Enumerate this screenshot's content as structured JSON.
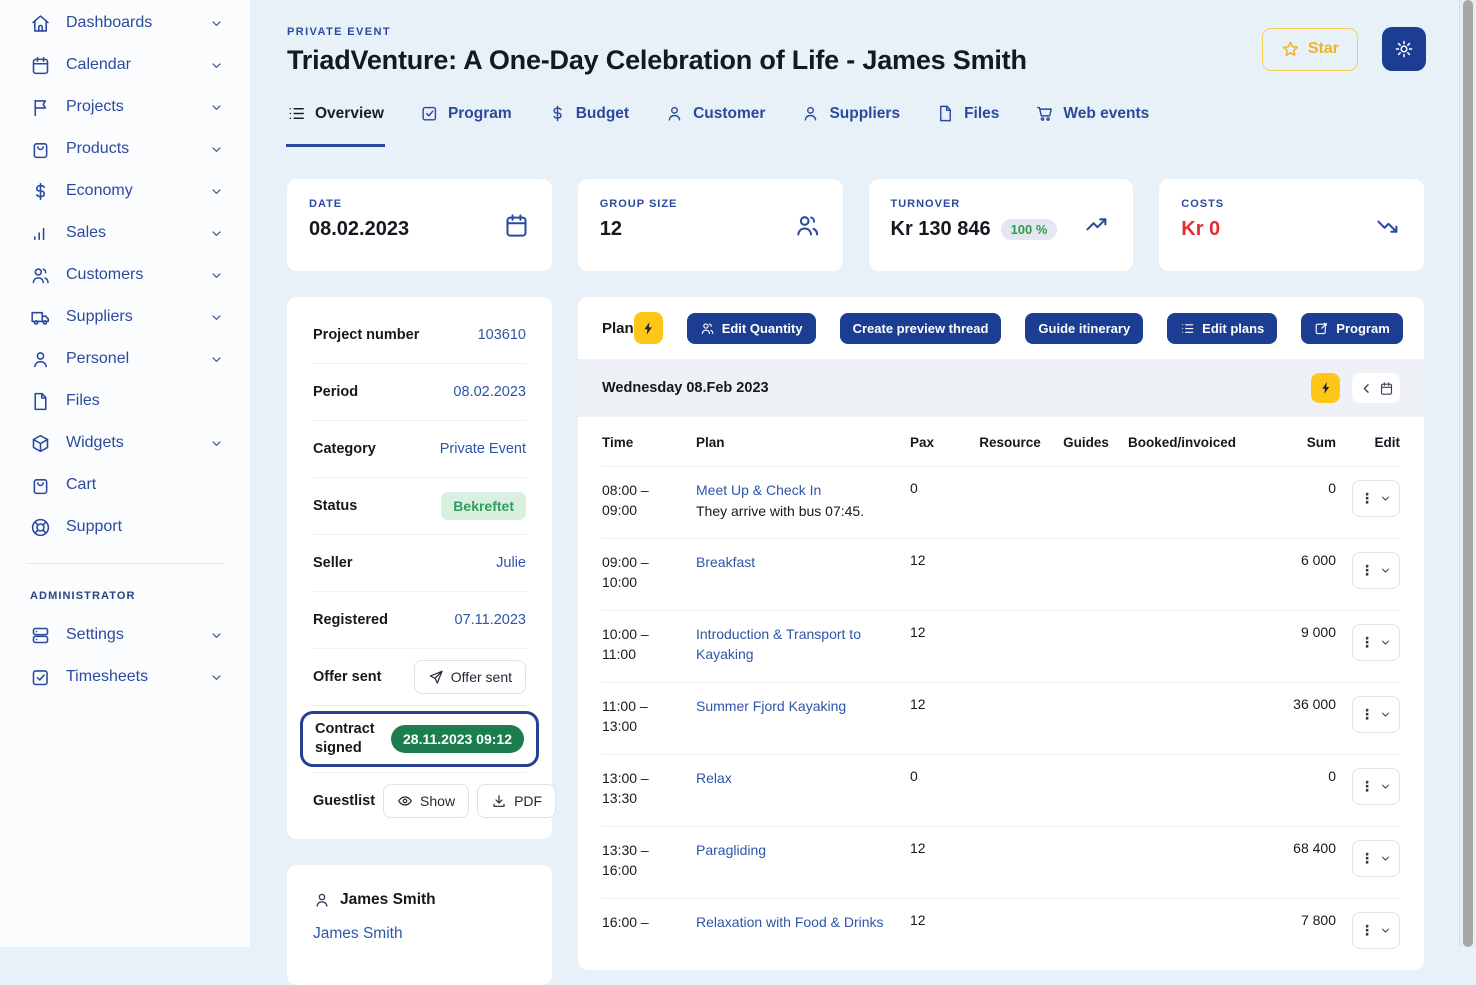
{
  "colors": {
    "navy_button": "#1b3e93",
    "link_blue": "#2d55a8",
    "sidebar_text": "#2b4a9d",
    "page_bg": "#e9f1f8",
    "yellow": "#ffc61a",
    "star_gold": "#f0b325",
    "red": "#e03131",
    "green_badge_bg": "#d9f0e1",
    "green_badge_text": "#2f9e5f",
    "green_solid": "#1e7d4e"
  },
  "sidebar": {
    "items": [
      {
        "label": "Dashboards",
        "icon": "home",
        "chevron": true
      },
      {
        "label": "Calendar",
        "icon": "calendar",
        "chevron": true
      },
      {
        "label": "Projects",
        "icon": "flag",
        "chevron": true
      },
      {
        "label": "Products",
        "icon": "bag",
        "chevron": true
      },
      {
        "label": "Economy",
        "icon": "dollar",
        "chevron": true
      },
      {
        "label": "Sales",
        "icon": "bar-chart",
        "chevron": true
      },
      {
        "label": "Customers",
        "icon": "users",
        "chevron": true
      },
      {
        "label": "Suppliers",
        "icon": "truck",
        "chevron": true
      },
      {
        "label": "Personel",
        "icon": "user",
        "chevron": true
      },
      {
        "label": "Files",
        "icon": "file",
        "chevron": false
      },
      {
        "label": "Widgets",
        "icon": "box",
        "chevron": true
      },
      {
        "label": "Cart",
        "icon": "bag",
        "chevron": false
      },
      {
        "label": "Support",
        "icon": "life-buoy",
        "chevron": false
      }
    ],
    "section_label": "ADMINISTRATOR",
    "admin_items": [
      {
        "label": "Settings",
        "icon": "server",
        "chevron": true
      },
      {
        "label": "Timesheets",
        "icon": "check-square",
        "chevron": true
      }
    ]
  },
  "header": {
    "kicker": "PRIVATE EVENT",
    "title": "TriadVenture: A One-Day Celebration of Life - James Smith",
    "star_button": "Star"
  },
  "tabs": [
    {
      "label": "Overview",
      "icon": "list",
      "active": true
    },
    {
      "label": "Program",
      "icon": "check-square",
      "active": false
    },
    {
      "label": "Budget",
      "icon": "dollar",
      "active": false
    },
    {
      "label": "Customer",
      "icon": "user",
      "active": false
    },
    {
      "label": "Suppliers",
      "icon": "user",
      "active": false
    },
    {
      "label": "Files",
      "icon": "file",
      "active": false
    },
    {
      "label": "Web events",
      "icon": "cart",
      "active": false
    }
  ],
  "stats": [
    {
      "label": "DATE",
      "value": "08.02.2023",
      "icon": "calendar"
    },
    {
      "label": "GROUP SIZE",
      "value": "12",
      "icon": "users"
    },
    {
      "label": "TURNOVER",
      "value": "Kr 130 846",
      "badge": "100 %",
      "icon": "trend-up"
    },
    {
      "label": "COSTS",
      "value": "Kr 0",
      "icon": "trend-down",
      "accent": "red"
    }
  ],
  "details": {
    "rows": [
      {
        "label": "Project number",
        "value": "103610",
        "type": "text"
      },
      {
        "label": "Period",
        "value": "08.02.2023",
        "type": "text"
      },
      {
        "label": "Category",
        "value": "Private Event",
        "type": "text"
      },
      {
        "label": "Status",
        "value": "Bekreftet",
        "type": "badge-green"
      },
      {
        "label": "Seller",
        "value": "Julie",
        "type": "text"
      },
      {
        "label": "Registered",
        "value": "07.11.2023",
        "type": "text"
      },
      {
        "label": "Offer sent",
        "value": "Offer sent",
        "type": "button-send"
      },
      {
        "label": "Contract signed",
        "value": "28.11.2023 09:12",
        "type": "badge-solid-green",
        "highlight": true
      },
      {
        "label": "Guestlist",
        "type": "buttons",
        "buttons": [
          {
            "label": "Show",
            "icon": "eye"
          },
          {
            "label": "PDF",
            "icon": "download"
          }
        ]
      }
    ]
  },
  "customer_card": {
    "name": "James Smith",
    "link": "James Smith"
  },
  "plan": {
    "title": "Plan",
    "action_buttons": [
      {
        "label": "Edit Quantity",
        "icon": "users"
      },
      {
        "label": "Create preview thread",
        "icon": ""
      },
      {
        "label": "Guide itinerary",
        "icon": ""
      },
      {
        "label": "Edit plans",
        "icon": "list"
      },
      {
        "label": "Program",
        "icon": "edit"
      }
    ],
    "day_header": "Wednesday 08.Feb 2023",
    "columns": [
      "Time",
      "Plan",
      "Pax",
      "Resource",
      "Guides",
      "Booked/invoiced",
      "Sum",
      "Edit"
    ],
    "rows": [
      {
        "time_start": "08:00 –",
        "time_end": "09:00",
        "title": "Meet Up & Check In",
        "note": "They arrive with bus 07:45.",
        "pax": "0",
        "resource": "",
        "guides": "",
        "booked": "",
        "sum": "0"
      },
      {
        "time_start": "09:00 –",
        "time_end": "10:00",
        "title": "Breakfast",
        "note": "",
        "pax": "12",
        "resource": "",
        "guides": "",
        "booked": "",
        "sum": "6 000"
      },
      {
        "time_start": "10:00 –",
        "time_end": "11:00",
        "title": "Introduction & Transport to Kayaking",
        "note": "",
        "pax": "12",
        "resource": "",
        "guides": "",
        "booked": "",
        "sum": "9 000"
      },
      {
        "time_start": "11:00 –",
        "time_end": "13:00",
        "title": "Summer Fjord Kayaking",
        "note": "",
        "pax": "12",
        "resource": "",
        "guides": "",
        "booked": "",
        "sum": "36 000"
      },
      {
        "time_start": "13:00 –",
        "time_end": "13:30",
        "title": "Relax",
        "note": "",
        "pax": "0",
        "resource": "",
        "guides": "",
        "booked": "",
        "sum": "0"
      },
      {
        "time_start": "13:30 –",
        "time_end": "16:00",
        "title": "Paragliding",
        "note": "",
        "pax": "12",
        "resource": "",
        "guides": "",
        "booked": "",
        "sum": "68 400"
      },
      {
        "time_start": "16:00 –",
        "time_end": "",
        "title": "Relaxation with Food & Drinks",
        "note": "",
        "pax": "12",
        "resource": "",
        "guides": "",
        "booked": "",
        "sum": "7 800"
      }
    ]
  }
}
